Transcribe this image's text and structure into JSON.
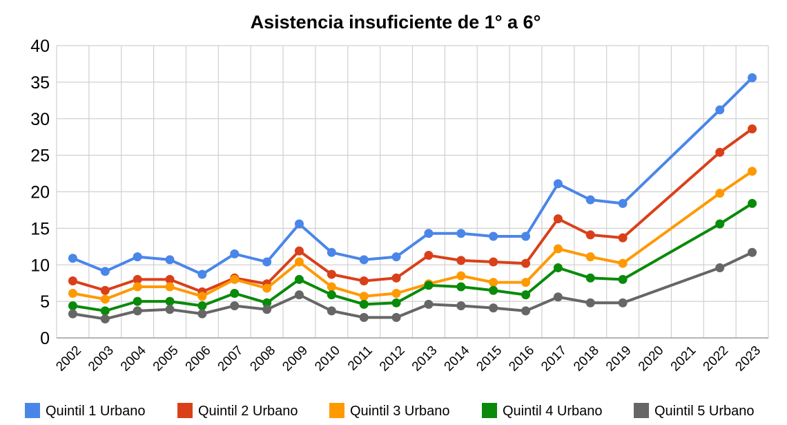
{
  "chart_data": {
    "type": "line",
    "title": "Asistencia insuficiente de 1° a 6°",
    "xlabel": "",
    "ylabel": "",
    "ylim": [
      0,
      40
    ],
    "yticks": [
      0,
      5,
      10,
      15,
      20,
      25,
      30,
      35,
      40
    ],
    "grid": true,
    "legend_position": "bottom",
    "categories": [
      "2002",
      "2003",
      "2004",
      "2005",
      "2006",
      "2007",
      "2008",
      "2009",
      "2010",
      "2011",
      "2012",
      "2013",
      "2014",
      "2015",
      "2016",
      "2017",
      "2018",
      "2019",
      "2020",
      "2021",
      "2022",
      "2023"
    ],
    "series": [
      {
        "name": "Quintil 1 Urbano",
        "color": "#4a86e8",
        "values": [
          10.9,
          9.1,
          11.1,
          10.7,
          8.7,
          11.5,
          10.4,
          15.6,
          11.7,
          10.7,
          11.1,
          14.3,
          14.3,
          13.9,
          13.9,
          21.1,
          18.9,
          18.4,
          null,
          null,
          31.2,
          35.6
        ]
      },
      {
        "name": "Quintil 2 Urbano",
        "color": "#d9401a",
        "values": [
          7.8,
          6.5,
          8.0,
          8.0,
          6.3,
          8.2,
          7.4,
          11.9,
          8.7,
          7.8,
          8.2,
          11.3,
          10.6,
          10.4,
          10.2,
          16.3,
          14.1,
          13.7,
          null,
          null,
          25.4,
          28.6
        ]
      },
      {
        "name": "Quintil 3 Urbano",
        "color": "#ff9900",
        "values": [
          6.1,
          5.3,
          7.0,
          7.0,
          5.7,
          8.0,
          6.8,
          10.4,
          7.0,
          5.7,
          6.1,
          7.4,
          8.5,
          7.6,
          7.6,
          12.2,
          11.1,
          10.2,
          null,
          null,
          19.8,
          22.8
        ]
      },
      {
        "name": "Quintil 4 Urbano",
        "color": "#0a8a0a",
        "values": [
          4.4,
          3.7,
          5.0,
          5.0,
          4.4,
          6.1,
          4.8,
          8.0,
          5.9,
          4.6,
          4.8,
          7.2,
          7.0,
          6.5,
          5.9,
          9.6,
          8.2,
          8.0,
          null,
          null,
          15.6,
          18.4
        ]
      },
      {
        "name": "Quintil 5 Urbano",
        "color": "#666666",
        "values": [
          3.3,
          2.6,
          3.7,
          3.9,
          3.3,
          4.4,
          3.9,
          5.9,
          3.7,
          2.8,
          2.8,
          4.6,
          4.4,
          4.1,
          3.7,
          5.6,
          4.8,
          4.8,
          null,
          null,
          9.6,
          11.7
        ]
      }
    ]
  }
}
